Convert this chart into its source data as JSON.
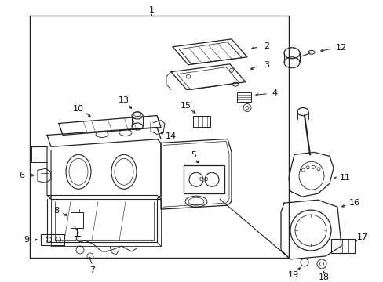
{
  "bg_color": "#ffffff",
  "line_color": "#222222",
  "text_color": "#111111",
  "fig_width": 4.89,
  "fig_height": 3.6,
  "dpi": 100
}
